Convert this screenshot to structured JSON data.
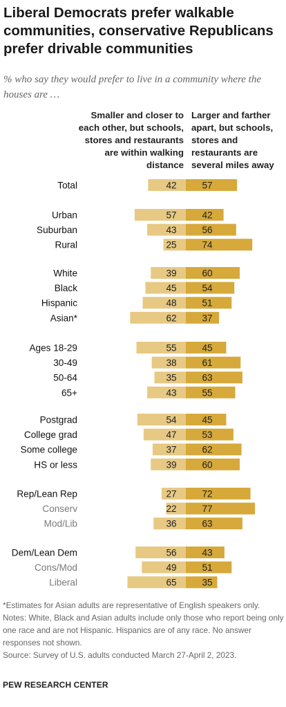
{
  "title": "Liberal Democrats prefer walkable communities, conservative Republicans prefer drivable communities",
  "subtitle": "% who say they would prefer to live in a community where the houses are …",
  "colors": {
    "left": "#e7c983",
    "right": "#d6a93a",
    "label": "#111111",
    "sublabel": "#7a7a7a"
  },
  "chart_data": {
    "type": "bar",
    "orientation": "horizontal-diverging",
    "series": [
      {
        "name": "Smaller and closer to each other, but schools, stores and restaurants are within walking distance",
        "direction": "left"
      },
      {
        "name": "Larger and farther apart, but schools, stores and restaurants are several miles away",
        "direction": "right"
      }
    ],
    "rows": [
      {
        "label": "Total",
        "group": 0,
        "sub": false,
        "left": 42,
        "right": 57
      },
      {
        "label": "Urban",
        "group": 1,
        "sub": false,
        "left": 57,
        "right": 42
      },
      {
        "label": "Suburban",
        "group": 1,
        "sub": false,
        "left": 43,
        "right": 56
      },
      {
        "label": "Rural",
        "group": 1,
        "sub": false,
        "left": 25,
        "right": 74
      },
      {
        "label": "White",
        "group": 2,
        "sub": false,
        "left": 39,
        "right": 60
      },
      {
        "label": "Black",
        "group": 2,
        "sub": false,
        "left": 45,
        "right": 54
      },
      {
        "label": "Hispanic",
        "group": 2,
        "sub": false,
        "left": 48,
        "right": 51
      },
      {
        "label": "Asian*",
        "group": 2,
        "sub": false,
        "left": 62,
        "right": 37
      },
      {
        "label": "Ages 18-29",
        "group": 3,
        "sub": false,
        "left": 55,
        "right": 45
      },
      {
        "label": "30-49",
        "group": 3,
        "sub": false,
        "left": 38,
        "right": 61
      },
      {
        "label": "50-64",
        "group": 3,
        "sub": false,
        "left": 35,
        "right": 63
      },
      {
        "label": "65+",
        "group": 3,
        "sub": false,
        "left": 43,
        "right": 55
      },
      {
        "label": "Postgrad",
        "group": 4,
        "sub": false,
        "left": 54,
        "right": 45
      },
      {
        "label": "College grad",
        "group": 4,
        "sub": false,
        "left": 47,
        "right": 53
      },
      {
        "label": "Some college",
        "group": 4,
        "sub": false,
        "left": 37,
        "right": 62
      },
      {
        "label": "HS or less",
        "group": 4,
        "sub": false,
        "left": 39,
        "right": 60
      },
      {
        "label": "Rep/Lean Rep",
        "group": 5,
        "sub": false,
        "left": 27,
        "right": 72
      },
      {
        "label": "Conserv",
        "group": 5,
        "sub": true,
        "left": 22,
        "right": 77
      },
      {
        "label": "Mod/Lib",
        "group": 5,
        "sub": true,
        "left": 36,
        "right": 63
      },
      {
        "label": "Dem/Lean Dem",
        "group": 6,
        "sub": false,
        "left": 56,
        "right": 43
      },
      {
        "label": "Cons/Mod",
        "group": 6,
        "sub": true,
        "left": 49,
        "right": 51
      },
      {
        "label": "Liberal",
        "group": 6,
        "sub": true,
        "left": 65,
        "right": 35
      }
    ]
  },
  "notes": [
    "*Estimates for Asian adults are representative of English speakers only.",
    "Notes: White, Black and Asian adults include only those who report being only one race and are not Hispanic. Hispanics are of any race. No answer responses not shown.",
    "Source: Survey of U.S. adults conducted March 27-April 2, 2023."
  ],
  "source_org": "PEW RESEARCH CENTER"
}
